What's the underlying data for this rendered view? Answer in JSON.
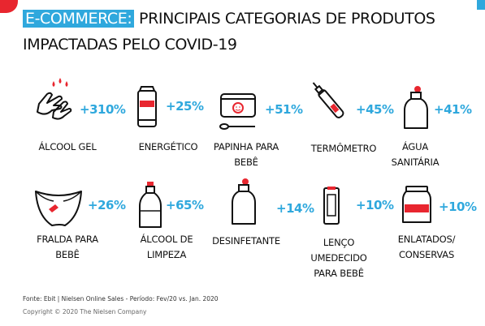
{
  "title": {
    "highlight": "E-COMMERCE:",
    "line1_rest": " PRINCIPAIS CATEGORIAS DE PRODUTOS",
    "line2": "IMPACTADAS PELO COVID-19"
  },
  "colors": {
    "accent_blue": "#2fa8dd",
    "accent_red": "#e8262f",
    "text": "#111111"
  },
  "items": [
    {
      "label": "ÁLCOOL GEL",
      "pct": "+310%",
      "icon": "hand-sanitizer-drops-icon"
    },
    {
      "label": "ENERGÉTICO",
      "pct": "+25%",
      "icon": "energy-can-icon"
    },
    {
      "label": "PAPINHA PARA\nBEBÊ",
      "pct": "+51%",
      "icon": "baby-food-jar-icon"
    },
    {
      "label": "TERMÔMETRO",
      "pct": "+45%",
      "icon": "thermometer-icon"
    },
    {
      "label": "ÁGUA\nSANITÁRIA",
      "pct": "+41%",
      "icon": "bleach-bottle-icon"
    },
    {
      "label": "FRALDA PARA\nBEBÊ",
      "pct": "+26%",
      "icon": "diaper-icon"
    },
    {
      "label": "ÁLCOOL DE\nLIMPEZA",
      "pct": "+65%",
      "icon": "alcohol-bottle-icon"
    },
    {
      "label": "DESINFETANTE",
      "pct": "+14%",
      "icon": "disinfectant-bottle-icon"
    },
    {
      "label": "LENÇO\nUMEDECIDO\nPARA BEBÊ",
      "pct": "+10%",
      "icon": "wet-wipes-icon"
    },
    {
      "label": "ENLATADOS/\nCONSERVAS",
      "pct": "+10%",
      "icon": "preserve-jar-icon"
    }
  ],
  "footer": {
    "source": "Fonte: Ebit | Nielsen Online Sales - Período:  Fev/20 vs. Jan. 2020",
    "copyright": "Copyright © 2020 The Nielsen Company"
  }
}
